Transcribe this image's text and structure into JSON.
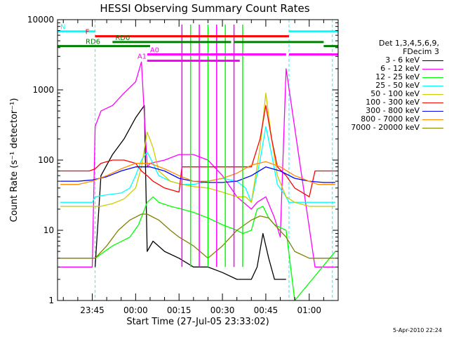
{
  "chart_data": {
    "type": "line",
    "title": "HESSI Observing Summary Count Rates",
    "xlabel": "Start Time (27-Jul-05 23:33:02)",
    "ylabel": "Count Rate (s⁻¹ detector⁻¹)",
    "yscale": "log",
    "ylim": [
      1,
      10000
    ],
    "xlim": [
      "23:33",
      "01:10"
    ],
    "x_tick_labels": [
      "23:45",
      "00:00",
      "00:15",
      "00:30",
      "00:45",
      "01:00"
    ],
    "y_tick_labels": [
      "1",
      "10",
      "100",
      "1000",
      "10000"
    ],
    "legend_title": [
      "Det 1,3,4,5,6,9,",
      "FDecim 3"
    ],
    "legend_position": "right",
    "series": [
      {
        "name": "3 - 6 keV",
        "color": "#000000",
        "x": [
          "23:46",
          "23:48",
          "23:52",
          "23:56",
          "00:00",
          "00:03",
          "00:04",
          "00:06",
          "00:10",
          "00:15",
          "00:20",
          "00:25",
          "00:30",
          "00:35",
          "00:38",
          "00:40",
          "00:42",
          "00:44",
          "00:46",
          "00:48",
          "00:50",
          "00:52"
        ],
        "y": [
          3,
          60,
          120,
          200,
          400,
          600,
          5,
          7,
          5,
          4,
          3,
          3,
          2.5,
          2,
          2,
          2,
          3,
          9,
          4,
          2,
          2,
          2
        ]
      },
      {
        "name": "6 - 12 keV",
        "color": "#ff00ff",
        "x": [
          "23:34",
          "23:40",
          "23:45",
          "23:46",
          "23:48",
          "23:52",
          "23:56",
          "00:00",
          "00:02",
          "00:04",
          "00:05",
          "00:10",
          "00:15",
          "00:20",
          "00:25",
          "00:30",
          "00:35",
          "00:40",
          "00:42",
          "00:45",
          "00:48",
          "00:50",
          "00:52",
          "01:02",
          "01:09"
        ],
        "y": [
          3,
          3,
          3,
          300,
          500,
          600,
          900,
          1300,
          2500,
          80,
          90,
          100,
          120,
          120,
          100,
          60,
          30,
          20,
          25,
          30,
          15,
          8,
          2000,
          3,
          3
        ]
      },
      {
        "name": "12 - 25 keV",
        "color": "#00ff00",
        "x": [
          "23:34",
          "23:45",
          "23:46",
          "23:52",
          "23:58",
          "00:01",
          "00:04",
          "00:06",
          "00:08",
          "00:12",
          "00:16",
          "00:20",
          "00:25",
          "00:30",
          "00:35",
          "00:37",
          "00:40",
          "00:42",
          "00:44",
          "00:46",
          "00:48",
          "00:52",
          "00:55",
          "01:09"
        ],
        "y": [
          4,
          4,
          4,
          6,
          8,
          12,
          25,
          30,
          25,
          22,
          20,
          18,
          15,
          12,
          10,
          9,
          10,
          20,
          22,
          15,
          12,
          10,
          1,
          5
        ]
      },
      {
        "name": "25 - 50 keV",
        "color": "#00ffff",
        "x": [
          "23:34",
          "23:45",
          "23:46",
          "23:50",
          "23:55",
          "23:58",
          "00:00",
          "00:02",
          "00:04",
          "00:06",
          "00:08",
          "00:12",
          "00:16",
          "00:20",
          "00:25",
          "00:30",
          "00:35",
          "00:38",
          "00:40",
          "00:43",
          "00:45",
          "00:47",
          "00:49",
          "00:52",
          "00:53",
          "01:09"
        ],
        "y": [
          25,
          25,
          30,
          32,
          34,
          40,
          60,
          100,
          130,
          90,
          60,
          50,
          45,
          45,
          50,
          55,
          50,
          40,
          25,
          100,
          300,
          120,
          45,
          30,
          25,
          25
        ]
      },
      {
        "name": "50 - 100 keV",
        "color": "#cccc00",
        "x": [
          "23:34",
          "23:45",
          "23:48",
          "23:52",
          "23:56",
          "00:00",
          "00:02",
          "00:04",
          "00:06",
          "00:08",
          "00:12",
          "00:16",
          "00:20",
          "00:25",
          "00:30",
          "00:35",
          "00:38",
          "00:40",
          "00:43",
          "00:45",
          "00:47",
          "00:49",
          "00:52",
          "00:55",
          "01:00",
          "01:09"
        ],
        "y": [
          22,
          22,
          22,
          24,
          28,
          40,
          80,
          250,
          150,
          70,
          50,
          45,
          42,
          40,
          35,
          30,
          30,
          25,
          150,
          900,
          200,
          60,
          30,
          25,
          22,
          22
        ]
      },
      {
        "name": "100 - 300 keV",
        "color": "#ff0000",
        "x": [
          "23:34",
          "23:44",
          "23:46",
          "23:48",
          "23:52",
          "23:56",
          "00:00",
          "00:02",
          "00:04",
          "00:06",
          "00:10",
          "00:15",
          "00:16",
          "00:20",
          "00:25",
          "00:30",
          "00:35",
          "00:38",
          "00:40",
          "00:43",
          "00:45",
          "00:47",
          "00:49",
          "00:52",
          "00:55",
          "01:00",
          "01:02",
          "01:09"
        ],
        "y": [
          70,
          70,
          75,
          90,
          100,
          100,
          90,
          70,
          60,
          50,
          40,
          35,
          80,
          80,
          80,
          80,
          80,
          80,
          80,
          200,
          600,
          200,
          80,
          60,
          40,
          30,
          70,
          70
        ]
      },
      {
        "name": "300 - 800 keV",
        "color": "#0000ff",
        "x": [
          "23:34",
          "23:40",
          "23:45",
          "23:50",
          "23:55",
          "00:00",
          "00:05",
          "00:10",
          "00:15",
          "00:20",
          "00:25",
          "00:30",
          "00:35",
          "00:40",
          "00:45",
          "00:50",
          "00:55",
          "01:00",
          "01:05",
          "01:09"
        ],
        "y": [
          50,
          50,
          52,
          58,
          70,
          80,
          80,
          70,
          55,
          50,
          48,
          48,
          50,
          60,
          80,
          70,
          55,
          50,
          48,
          48
        ]
      },
      {
        "name": "800 - 7000 keV",
        "color": "#ff8c00",
        "x": [
          "23:34",
          "23:40",
          "23:45",
          "23:50",
          "23:55",
          "00:00",
          "00:05",
          "00:10",
          "00:15",
          "00:20",
          "00:25",
          "00:30",
          "00:35",
          "00:40",
          "00:45",
          "00:50",
          "00:55",
          "01:00",
          "01:03",
          "01:09"
        ],
        "y": [
          45,
          45,
          50,
          60,
          75,
          90,
          90,
          75,
          60,
          50,
          50,
          55,
          65,
          85,
          95,
          80,
          60,
          50,
          45,
          45
        ]
      },
      {
        "name": "7000 - 20000 keV",
        "color": "#808000",
        "x": [
          "23:34",
          "23:44",
          "23:46",
          "23:50",
          "23:54",
          "23:58",
          "00:02",
          "00:04",
          "00:08",
          "00:12",
          "00:15",
          "00:20",
          "00:25",
          "00:30",
          "00:35",
          "00:40",
          "00:43",
          "00:46",
          "00:48",
          "00:52",
          "00:55",
          "01:00",
          "01:09"
        ],
        "y": [
          4,
          4,
          4,
          6,
          10,
          14,
          17,
          17,
          14,
          10,
          8,
          6,
          4,
          6,
          10,
          14,
          16,
          15,
          12,
          8,
          5,
          4,
          4
        ]
      }
    ],
    "annotations": [
      {
        "text": "N",
        "color": "#00ffff",
        "x_start": "23:33",
        "x_end": "23:46",
        "x2_start": "00:53",
        "x2_end": "01:10",
        "y": 6800
      },
      {
        "text": "F",
        "color": "#ff0000",
        "x_start": "23:46",
        "x_end": "00:53",
        "y": 5800
      },
      {
        "text": "RD0",
        "color": "#008000",
        "x_start": "23:52",
        "x_end": "00:33",
        "x2_start": "00:34",
        "x2_end": "01:05",
        "y": 4800
      },
      {
        "text": "RD6",
        "color": "#008000",
        "x_start": "23:33",
        "x_end": "00:05",
        "x2_start": "01:05",
        "x2_end": "01:10",
        "y": 4200
      },
      {
        "text": "A0",
        "color": "#ff00ff",
        "x_start": "00:04",
        "x_end": "00:52",
        "x2_start": "00:53",
        "x2_end": "01:10",
        "y": 3200
      },
      {
        "text": "A1",
        "color": "#ff00ff",
        "x_start": "00:04",
        "x_end": "00:36",
        "y": 2600
      }
    ],
    "spikes": [
      "00:16",
      "00:19",
      "00:22",
      "00:25",
      "00:28",
      "00:31",
      "00:34",
      "00:37"
    ],
    "vlines": [
      "23:46",
      "00:53",
      "01:08"
    ]
  },
  "datestamp": "5-Apr-2010 22:24"
}
